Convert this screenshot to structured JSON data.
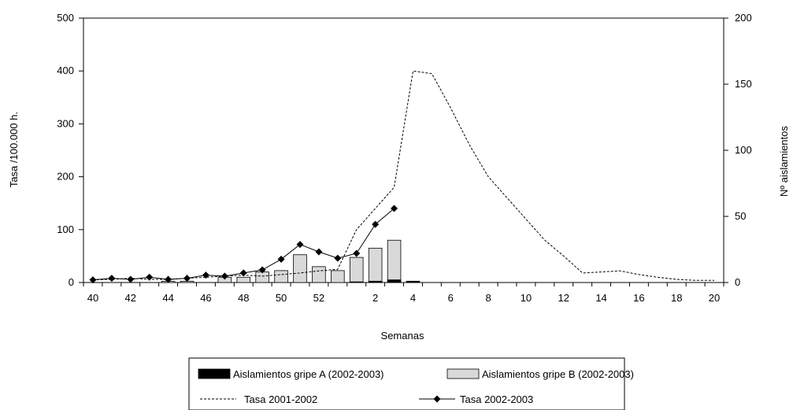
{
  "chart_data": {
    "type": "bar",
    "xlabel": "Semanas",
    "ylabel": "Tasa /100.000 h.",
    "y2label": "Nº aislamientos",
    "ylim": [
      0,
      500
    ],
    "y2lim": [
      0,
      200
    ],
    "yticks": [
      "0",
      "100",
      "200",
      "300",
      "400",
      "500"
    ],
    "y2ticks": [
      "0",
      "50",
      "100",
      "150",
      "200"
    ],
    "categories": [
      "40",
      "41",
      "42",
      "43",
      "44",
      "45",
      "46",
      "47",
      "48",
      "49",
      "50",
      "51",
      "52",
      "53",
      "1",
      "2",
      "3",
      "4",
      "5",
      "6",
      "7",
      "8",
      "9",
      "10",
      "11",
      "12",
      "13",
      "14",
      "15",
      "16",
      "17",
      "18",
      "19",
      "20"
    ],
    "xtick_labels": [
      "40",
      "42",
      "44",
      "46",
      "48",
      "50",
      "52",
      "2",
      "4",
      "6",
      "8",
      "10",
      "12",
      "14",
      "16",
      "18",
      "20"
    ],
    "grid": false,
    "legend_position": "bottom",
    "series": [
      {
        "name": "Aislamientos gripe A (2002-2003)",
        "kind": "bar",
        "axis": "right",
        "color": "#000000",
        "values": [
          0,
          0,
          0,
          0,
          0,
          0,
          0,
          0,
          0,
          0,
          0,
          0,
          0,
          0,
          0.5,
          1,
          2,
          1,
          null,
          null,
          null,
          null,
          null,
          null,
          null,
          null,
          null,
          null,
          null,
          null,
          null,
          null,
          null,
          null
        ]
      },
      {
        "name": "Aislamientos gripe B (2002-2003)",
        "kind": "bar",
        "axis": "right",
        "color": "#d9d9d9",
        "values": [
          0,
          0,
          0,
          0,
          1,
          1,
          0,
          4,
          4,
          8,
          9,
          21,
          12,
          9,
          19,
          26,
          32,
          null,
          null,
          null,
          null,
          null,
          null,
          null,
          null,
          null,
          null,
          null,
          null,
          null,
          null,
          null,
          null,
          null
        ]
      },
      {
        "name": "Tasa 2001-2002",
        "kind": "line",
        "axis": "left",
        "style": "dashed",
        "color": "#000000",
        "values": [
          5,
          6,
          8,
          6,
          6,
          8,
          10,
          12,
          14,
          12,
          15,
          18,
          22,
          25,
          100,
          140,
          180,
          400,
          395,
          330,
          260,
          200,
          160,
          120,
          80,
          50,
          18,
          20,
          22,
          15,
          10,
          6,
          4,
          4
        ]
      },
      {
        "name": "Tasa 2002-2003",
        "kind": "line",
        "axis": "left",
        "style": "solid-diamond",
        "color": "#000000",
        "values": [
          5,
          8,
          6,
          10,
          6,
          8,
          14,
          12,
          18,
          24,
          44,
          72,
          58,
          46,
          55,
          110,
          140,
          null,
          null,
          null,
          null,
          null,
          null,
          null,
          null,
          null,
          null,
          null,
          null,
          null,
          null,
          null,
          null,
          null
        ]
      }
    ]
  }
}
